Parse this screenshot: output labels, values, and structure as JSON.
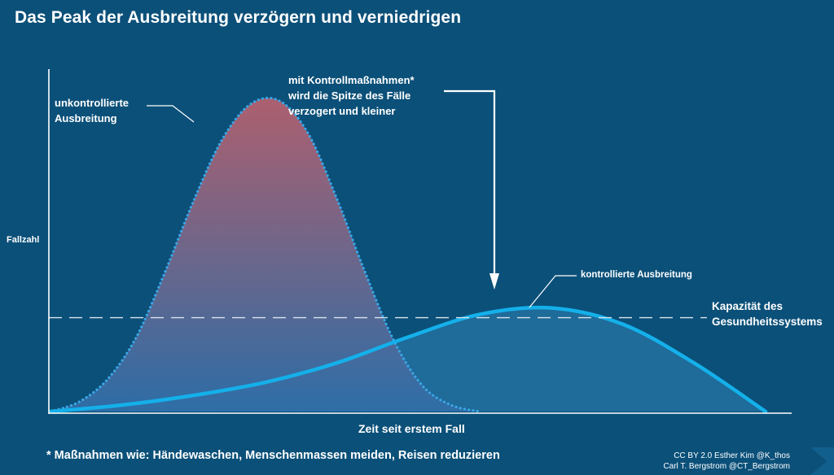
{
  "header": {
    "title": "Das Peak der Ausbreitung verzögern und verniedrigen"
  },
  "annotations": {
    "uncontrolled": "unkontrollierte\nAusbreitung",
    "controlled_arrow_note": "mit Kontrollmaßnahmen*\nwird die Spitze des Fälle\nverzogert und kleiner",
    "controlled_curve": "kontrollierte Ausbreitung",
    "capacity": "Kapazität des\nGesundheitssystems"
  },
  "footnote": "* Maßnahmen wie: Händewaschen, Menschenmassen meiden, Reisen reduzieren",
  "credit": {
    "line1": "CC BY 2.0  Esther Kim  @K_thos",
    "line2": "Carl T. Bergstrom  @CT_Bergstrom"
  },
  "colors": {
    "background": "#0b5079",
    "uncontrolled_top": "#b5606e",
    "uncontrolled_bottom": "#2f6ea8",
    "controlled_line": "#14b0ea",
    "controlled_fill": "#1f6b99",
    "capacity_line": "#d9e4ec"
  },
  "chart_data": {
    "type": "area",
    "xlabel": "Zeit seit erstem Fall",
    "ylabel": "Fallzahl",
    "xlim": [
      0,
      100
    ],
    "ylim": [
      0,
      100
    ],
    "grid": false,
    "series": [
      {
        "name": "unkontrollierte Ausbreitung",
        "style": "dotted-outline-gradient-fill",
        "x": [
          0,
          4,
          8,
          12,
          16,
          20,
          24,
          28,
          32,
          36,
          40,
          44,
          48,
          52,
          56,
          60
        ],
        "y": [
          0,
          3,
          10,
          23,
          43,
          65,
          84,
          95,
          96,
          86,
          66,
          43,
          22,
          8,
          2,
          0
        ]
      },
      {
        "name": "kontrollierte Ausbreitung",
        "style": "solid-line-fill",
        "x": [
          0,
          10,
          20,
          30,
          40,
          50,
          60,
          70,
          80,
          90,
          100
        ],
        "y": [
          0,
          2,
          5,
          9,
          15,
          23,
          30,
          32,
          27,
          15,
          0
        ]
      }
    ],
    "capacity_level": 29
  }
}
